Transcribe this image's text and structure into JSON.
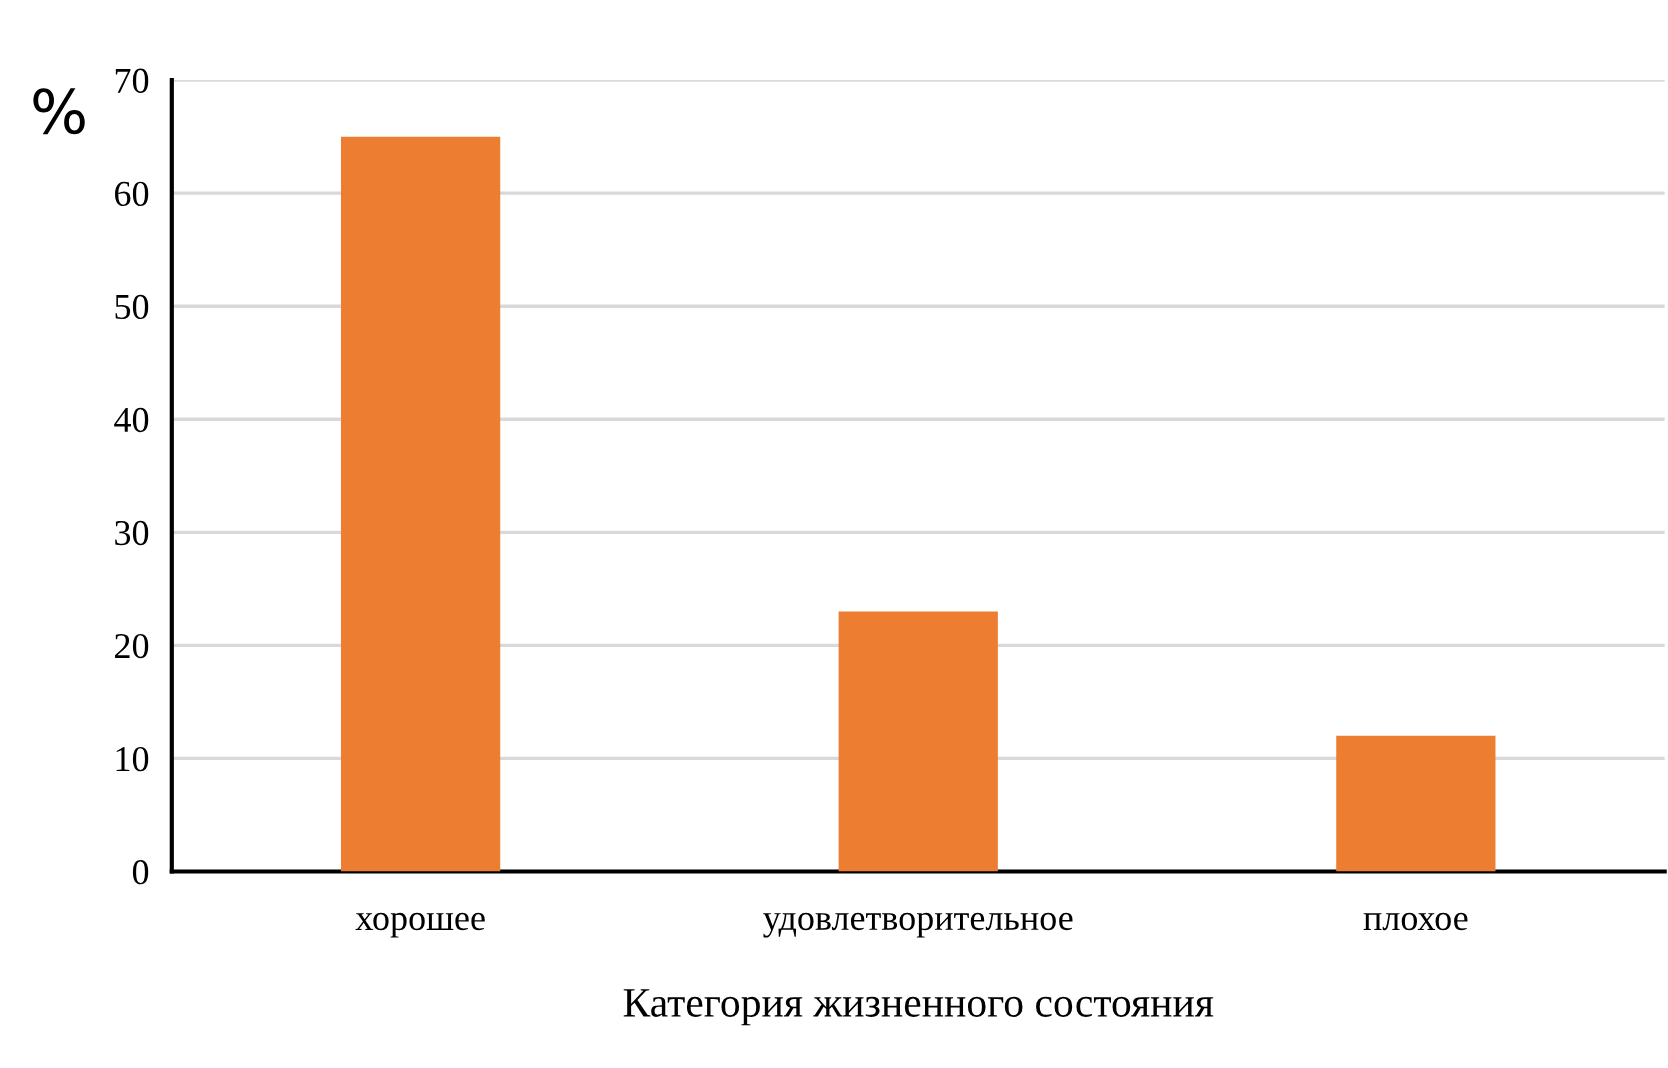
{
  "chart_data": {
    "type": "bar",
    "xlabel": "Категория жизненного состояния",
    "ylabel": "%",
    "categories": [
      "хорошее",
      "удовлетворительное",
      "плохое"
    ],
    "values": [
      65,
      23,
      12
    ],
    "color": "#ed7d31",
    "ylim": [
      0,
      70
    ],
    "yticks": [
      0,
      10,
      20,
      30,
      40,
      50,
      60,
      70
    ],
    "grid": "y"
  }
}
